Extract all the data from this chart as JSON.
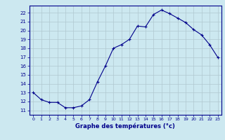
{
  "hours": [
    0,
    1,
    2,
    3,
    4,
    5,
    6,
    7,
    8,
    9,
    10,
    11,
    12,
    13,
    14,
    15,
    16,
    17,
    18,
    19,
    20,
    21,
    22,
    23
  ],
  "temperatures": [
    13.0,
    12.2,
    11.9,
    11.9,
    11.3,
    11.3,
    11.5,
    12.2,
    14.2,
    16.0,
    18.0,
    18.4,
    19.0,
    20.5,
    20.4,
    21.8,
    22.3,
    21.9,
    21.4,
    20.9,
    20.1,
    19.5,
    18.4,
    17.0
  ],
  "bg_color": "#cce8f0",
  "line_color": "#00008b",
  "grid_color": "#b0c8d0",
  "xlabel": "Graphe des températures (°c)",
  "xlabel_color": "#00008b",
  "tick_color": "#00008b",
  "ylim": [
    10.5,
    22.8
  ],
  "xlim": [
    -0.5,
    23.5
  ],
  "yticks": [
    11,
    12,
    13,
    14,
    15,
    16,
    17,
    18,
    19,
    20,
    21,
    22
  ],
  "xticks": [
    0,
    1,
    2,
    3,
    4,
    5,
    6,
    7,
    8,
    9,
    10,
    11,
    12,
    13,
    14,
    15,
    16,
    17,
    18,
    19,
    20,
    21,
    22,
    23
  ]
}
